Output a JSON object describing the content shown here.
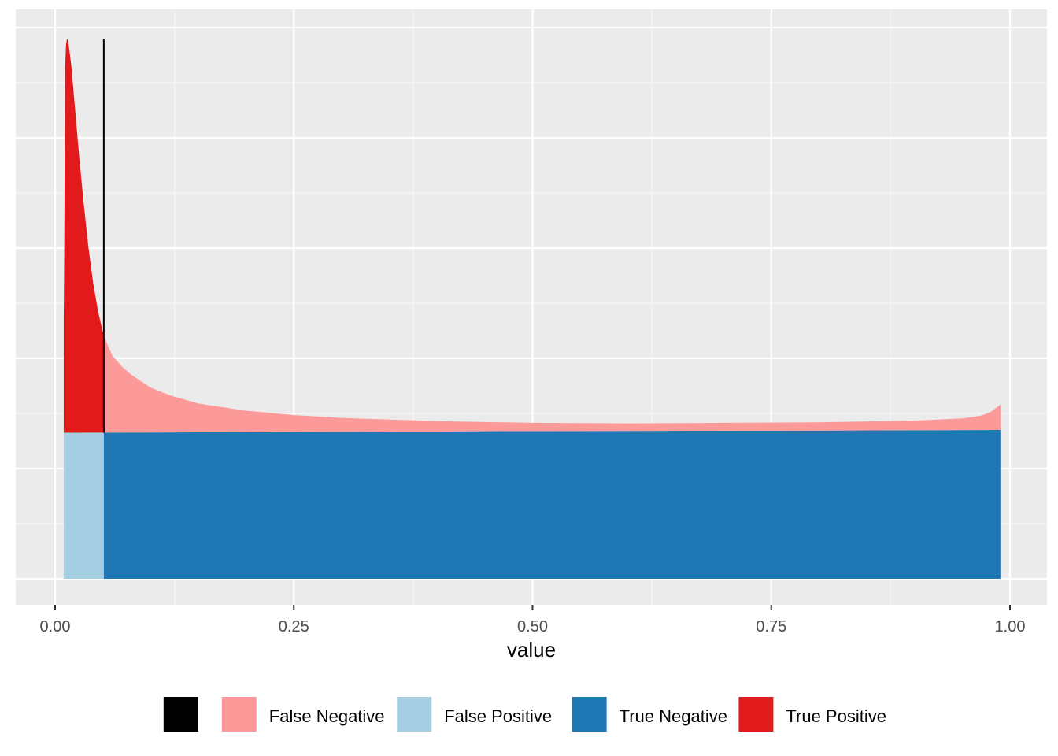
{
  "chart_data": {
    "type": "area",
    "xlabel": "value",
    "ylabel": "",
    "xlim": [
      -0.008,
      1.02
    ],
    "ylim": [
      0,
      1
    ],
    "x_ticks": [
      0.0,
      0.25,
      0.5,
      0.75,
      1.0
    ],
    "x_tick_labels": [
      "0.00",
      "0.25",
      "0.50",
      "0.75",
      "1.00"
    ],
    "y_ticks_labeled": false,
    "grid": true,
    "legend_position": "bottom",
    "threshold": 0.051,
    "data_range": [
      0.009,
      0.99
    ],
    "legend": [
      {
        "label": "",
        "color": "#000000"
      },
      {
        "label": "False Negative",
        "color": "#fb9a99"
      },
      {
        "label": "False Positive",
        "color": "#a6cee3"
      },
      {
        "label": "True Negative",
        "color": "#1f78b4"
      },
      {
        "label": "True Positive",
        "color": "#e31a1c"
      }
    ],
    "negative_band": {
      "bottom": 0.0,
      "top": [
        [
          0.009,
          0.265
        ],
        [
          0.2,
          0.266
        ],
        [
          0.5,
          0.268
        ],
        [
          0.8,
          0.269
        ],
        [
          0.99,
          0.27
        ]
      ]
    },
    "positive_density": [
      [
        0.009,
        0.47
      ],
      [
        0.0095,
        0.58
      ],
      [
        0.01,
        0.75
      ],
      [
        0.0105,
        0.93
      ],
      [
        0.0115,
        0.97
      ],
      [
        0.0125,
        0.98
      ],
      [
        0.0135,
        0.977
      ],
      [
        0.015,
        0.958
      ],
      [
        0.017,
        0.93
      ],
      [
        0.02,
        0.87
      ],
      [
        0.025,
        0.77
      ],
      [
        0.03,
        0.68
      ],
      [
        0.035,
        0.6
      ],
      [
        0.04,
        0.535
      ],
      [
        0.045,
        0.485
      ],
      [
        0.051,
        0.44
      ],
      [
        0.06,
        0.405
      ],
      [
        0.07,
        0.385
      ],
      [
        0.08,
        0.37
      ],
      [
        0.1,
        0.347
      ],
      [
        0.12,
        0.333
      ],
      [
        0.15,
        0.318
      ],
      [
        0.2,
        0.305
      ],
      [
        0.25,
        0.297
      ],
      [
        0.3,
        0.292
      ],
      [
        0.4,
        0.286
      ],
      [
        0.5,
        0.283
      ],
      [
        0.6,
        0.282
      ],
      [
        0.7,
        0.283
      ],
      [
        0.8,
        0.284
      ],
      [
        0.9,
        0.287
      ],
      [
        0.95,
        0.291
      ],
      [
        0.97,
        0.296
      ],
      [
        0.98,
        0.303
      ],
      [
        0.99,
        0.316
      ]
    ]
  }
}
